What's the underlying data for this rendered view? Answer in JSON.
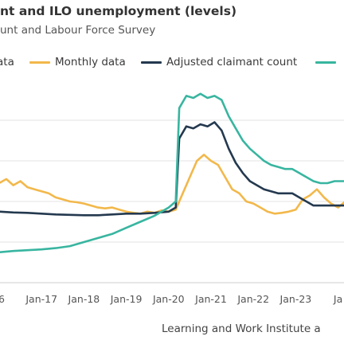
{
  "header": {
    "title": "nt and ILO unemployment (levels)",
    "subtitle": "unt and Labour Force Survey"
  },
  "legend": [
    {
      "label": "ata",
      "color": "#7fa8c0"
    },
    {
      "label": "Monthly data",
      "color": "#f2b84b"
    },
    {
      "label": "Adjusted claimant count",
      "color": "#24394f"
    },
    {
      "label": "",
      "color": "#38b5a0"
    }
  ],
  "source": "Learning and Work Institute a",
  "chart_data": {
    "type": "line",
    "x_tick_labels": [
      "6",
      "Jan-17",
      "Jan-18",
      "Jan-19",
      "Jan-20",
      "Jan-21",
      "Jan-22",
      "Jan-23",
      "Ja"
    ],
    "x_range": [
      "2016-01",
      "2024-03"
    ],
    "y_range": [
      0,
      5
    ],
    "gridlines": "horizontal",
    "y_tick_labels_visible": false,
    "series": [
      {
        "name": "Monthly data",
        "color": "#f2b84b",
        "x": [
          "2016-01",
          "2016-03",
          "2016-05",
          "2016-07",
          "2016-09",
          "2016-11",
          "2017-01",
          "2017-03",
          "2017-05",
          "2017-07",
          "2017-09",
          "2017-11",
          "2018-01",
          "2018-03",
          "2018-05",
          "2018-07",
          "2018-09",
          "2018-11",
          "2019-01",
          "2019-03",
          "2019-05",
          "2019-07",
          "2019-09",
          "2019-11",
          "2020-01",
          "2020-03",
          "2020-05",
          "2020-07",
          "2020-09",
          "2020-11",
          "2021-01",
          "2021-03",
          "2021-05",
          "2021-07",
          "2021-09",
          "2021-11",
          "2022-01",
          "2022-03",
          "2022-05",
          "2022-07",
          "2022-09",
          "2022-11",
          "2023-01",
          "2023-03",
          "2023-05",
          "2023-07",
          "2023-09",
          "2023-11",
          "2024-01",
          "2024-03"
        ],
        "values": [
          2.45,
          2.55,
          2.4,
          2.5,
          2.35,
          2.3,
          2.25,
          2.2,
          2.1,
          2.05,
          2.0,
          1.98,
          1.95,
          1.9,
          1.85,
          1.83,
          1.85,
          1.8,
          1.75,
          1.72,
          1.7,
          1.75,
          1.72,
          1.78,
          1.75,
          1.8,
          2.2,
          2.6,
          3.0,
          3.15,
          3.0,
          2.9,
          2.6,
          2.3,
          2.2,
          2.0,
          1.95,
          1.85,
          1.75,
          1.7,
          1.72,
          1.75,
          1.8,
          2.05,
          2.15,
          2.3,
          2.1,
          1.95,
          1.85,
          2.0
        ]
      },
      {
        "name": "Adjusted claimant count",
        "color": "#24394f",
        "x": [
          "2016-01",
          "2016-05",
          "2016-09",
          "2017-01",
          "2017-05",
          "2017-09",
          "2018-01",
          "2018-05",
          "2018-09",
          "2019-01",
          "2019-05",
          "2019-09",
          "2020-01",
          "2020-03",
          "2020-04",
          "2020-06",
          "2020-08",
          "2020-10",
          "2020-12",
          "2021-02",
          "2021-04",
          "2021-06",
          "2021-08",
          "2021-10",
          "2021-12",
          "2022-02",
          "2022-04",
          "2022-06",
          "2022-08",
          "2022-10",
          "2022-12",
          "2023-02",
          "2023-04",
          "2023-06",
          "2023-08",
          "2023-10",
          "2023-12",
          "2024-03"
        ],
        "values": [
          1.75,
          1.73,
          1.72,
          1.7,
          1.68,
          1.67,
          1.66,
          1.66,
          1.68,
          1.7,
          1.7,
          1.72,
          1.75,
          1.85,
          3.55,
          3.85,
          3.8,
          3.9,
          3.85,
          3.95,
          3.75,
          3.3,
          2.95,
          2.7,
          2.5,
          2.4,
          2.3,
          2.25,
          2.2,
          2.2,
          2.2,
          2.1,
          2.0,
          1.9,
          1.9,
          1.9,
          1.9,
          1.9
        ]
      },
      {
        "name": "",
        "color": "#38b5a0",
        "x": [
          "2016-01",
          "2016-05",
          "2016-09",
          "2017-01",
          "2017-05",
          "2017-09",
          "2018-01",
          "2018-05",
          "2018-09",
          "2019-01",
          "2019-05",
          "2019-09",
          "2020-01",
          "2020-03",
          "2020-04",
          "2020-06",
          "2020-08",
          "2020-10",
          "2020-12",
          "2021-02",
          "2021-04",
          "2021-06",
          "2021-08",
          "2021-10",
          "2021-12",
          "2022-02",
          "2022-04",
          "2022-06",
          "2022-08",
          "2022-10",
          "2022-12",
          "2023-02",
          "2023-04",
          "2023-06",
          "2023-08",
          "2023-10",
          "2023-12",
          "2024-03"
        ],
        "values": [
          0.75,
          0.78,
          0.8,
          0.82,
          0.85,
          0.9,
          1.0,
          1.1,
          1.2,
          1.35,
          1.5,
          1.65,
          1.85,
          2.0,
          4.3,
          4.6,
          4.55,
          4.65,
          4.55,
          4.6,
          4.5,
          4.1,
          3.8,
          3.5,
          3.3,
          3.15,
          3.0,
          2.9,
          2.85,
          2.8,
          2.8,
          2.7,
          2.6,
          2.5,
          2.45,
          2.45,
          2.5,
          2.5
        ]
      }
    ]
  }
}
